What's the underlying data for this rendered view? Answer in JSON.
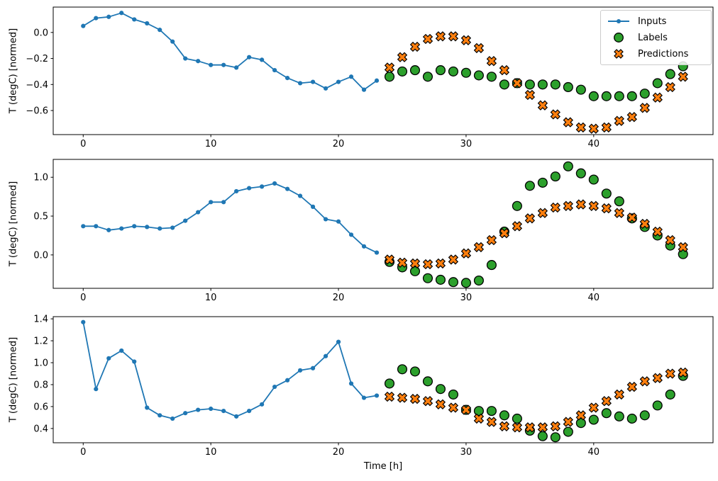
{
  "figure": {
    "background": "#ffffff",
    "colors": {
      "inputs": "#1f77b4",
      "labels": "#2ca02c",
      "predictions": "#ff7f0e",
      "marker_edge": "#000000"
    }
  },
  "legend": {
    "position": "upper right",
    "entries": [
      {
        "label": "Inputs",
        "marker": "line-dot",
        "color": "#1f77b4"
      },
      {
        "label": "Labels",
        "marker": "circle",
        "color": "#2ca02c"
      },
      {
        "label": "Predictions",
        "marker": "x",
        "color": "#ff7f0e"
      }
    ]
  },
  "chart_data": [
    {
      "type": "line",
      "title": "",
      "xlabel": "",
      "ylabel": "T (degC) [normed]",
      "xlim": [
        -2.35,
        49.35
      ],
      "ylim": [
        -0.785,
        0.195
      ],
      "xticks": [
        0,
        10,
        20,
        30,
        40
      ],
      "xtick_labels": [
        "0",
        "10",
        "20",
        "30",
        "40"
      ],
      "yticks": [
        0.0,
        -0.2,
        -0.4,
        -0.6
      ],
      "ytick_labels": [
        "0.0",
        "−0.2",
        "−0.4",
        "−0.6"
      ],
      "grid": false,
      "legend_visible": true,
      "series": [
        {
          "name": "Inputs",
          "type": "line",
          "marker": "dot",
          "color": "#1f77b4",
          "x": [
            0,
            1,
            2,
            3,
            4,
            5,
            6,
            7,
            8,
            9,
            10,
            11,
            12,
            13,
            14,
            15,
            16,
            17,
            18,
            19,
            20,
            21,
            22,
            23
          ],
          "values": [
            0.05,
            0.11,
            0.12,
            0.15,
            0.1,
            0.07,
            0.02,
            -0.07,
            -0.2,
            -0.22,
            -0.25,
            -0.25,
            -0.27,
            -0.19,
            -0.21,
            -0.29,
            -0.35,
            -0.39,
            -0.38,
            -0.43,
            -0.38,
            -0.34,
            -0.44,
            -0.37
          ]
        },
        {
          "name": "Labels",
          "type": "scatter",
          "marker": "circle",
          "color": "#2ca02c",
          "x": [
            24,
            25,
            26,
            27,
            28,
            29,
            30,
            31,
            32,
            33,
            34,
            35,
            36,
            37,
            38,
            39,
            40,
            41,
            42,
            43,
            44,
            45,
            46,
            47
          ],
          "values": [
            -0.34,
            -0.3,
            -0.29,
            -0.34,
            -0.29,
            -0.3,
            -0.31,
            -0.33,
            -0.34,
            -0.4,
            -0.39,
            -0.4,
            -0.4,
            -0.4,
            -0.42,
            -0.44,
            -0.49,
            -0.49,
            -0.49,
            -0.49,
            -0.47,
            -0.39,
            -0.32,
            -0.26
          ]
        },
        {
          "name": "Predictions",
          "type": "scatter",
          "marker": "x",
          "color": "#ff7f0e",
          "x": [
            24,
            25,
            26,
            27,
            28,
            29,
            30,
            31,
            32,
            33,
            34,
            35,
            36,
            37,
            38,
            39,
            40,
            41,
            42,
            43,
            44,
            45,
            46,
            47
          ],
          "values": [
            -0.27,
            -0.19,
            -0.11,
            -0.05,
            -0.03,
            -0.03,
            -0.06,
            -0.12,
            -0.22,
            -0.29,
            -0.39,
            -0.48,
            -0.56,
            -0.63,
            -0.69,
            -0.73,
            -0.74,
            -0.73,
            -0.68,
            -0.65,
            -0.58,
            -0.5,
            -0.42,
            -0.34
          ]
        }
      ]
    },
    {
      "type": "line",
      "title": "",
      "xlabel": "",
      "ylabel": "T (degC) [normed]",
      "xlim": [
        -2.35,
        49.35
      ],
      "ylim": [
        -0.43,
        1.23
      ],
      "xticks": [
        0,
        10,
        20,
        30,
        40
      ],
      "xtick_labels": [
        "0",
        "10",
        "20",
        "30",
        "40"
      ],
      "yticks": [
        1.0,
        0.5,
        0.0
      ],
      "ytick_labels": [
        "1.0",
        "0.5",
        "0.0"
      ],
      "grid": false,
      "legend_visible": false,
      "series": [
        {
          "name": "Inputs",
          "type": "line",
          "marker": "dot",
          "color": "#1f77b4",
          "x": [
            0,
            1,
            2,
            3,
            4,
            5,
            6,
            7,
            8,
            9,
            10,
            11,
            12,
            13,
            14,
            15,
            16,
            17,
            18,
            19,
            20,
            21,
            22,
            23
          ],
          "values": [
            0.37,
            0.37,
            0.32,
            0.34,
            0.37,
            0.36,
            0.34,
            0.35,
            0.44,
            0.55,
            0.68,
            0.68,
            0.82,
            0.86,
            0.88,
            0.92,
            0.85,
            0.76,
            0.62,
            0.46,
            0.43,
            0.26,
            0.11,
            0.03
          ]
        },
        {
          "name": "Labels",
          "type": "scatter",
          "marker": "circle",
          "color": "#2ca02c",
          "x": [
            24,
            25,
            26,
            27,
            28,
            29,
            30,
            31,
            32,
            33,
            34,
            35,
            36,
            37,
            38,
            39,
            40,
            41,
            42,
            43,
            44,
            45,
            46,
            47
          ],
          "values": [
            -0.09,
            -0.16,
            -0.21,
            -0.3,
            -0.32,
            -0.35,
            -0.36,
            -0.33,
            -0.13,
            0.3,
            0.63,
            0.89,
            0.93,
            1.01,
            1.14,
            1.05,
            0.97,
            0.79,
            0.69,
            0.47,
            0.36,
            0.25,
            0.12,
            0.01
          ]
        },
        {
          "name": "Predictions",
          "type": "scatter",
          "marker": "x",
          "color": "#ff7f0e",
          "x": [
            24,
            25,
            26,
            27,
            28,
            29,
            30,
            31,
            32,
            33,
            34,
            35,
            36,
            37,
            38,
            39,
            40,
            41,
            42,
            43,
            44,
            45,
            46,
            47
          ],
          "values": [
            -0.06,
            -0.1,
            -0.11,
            -0.12,
            -0.11,
            -0.06,
            0.02,
            0.1,
            0.19,
            0.28,
            0.37,
            0.47,
            0.54,
            0.61,
            0.63,
            0.65,
            0.63,
            0.6,
            0.54,
            0.48,
            0.4,
            0.3,
            0.19,
            0.1
          ]
        }
      ]
    },
    {
      "type": "line",
      "title": "",
      "xlabel": "Time [h]",
      "ylabel": "T (degC) [normed]",
      "xlim": [
        -2.35,
        49.35
      ],
      "ylim": [
        0.27,
        1.42
      ],
      "xticks": [
        0,
        10,
        20,
        30,
        40
      ],
      "xtick_labels": [
        "0",
        "10",
        "20",
        "30",
        "40"
      ],
      "yticks": [
        1.4,
        1.2,
        1.0,
        0.8,
        0.6,
        0.4
      ],
      "ytick_labels": [
        "1.4",
        "1.2",
        "1.0",
        "0.8",
        "0.6",
        "0.4"
      ],
      "grid": false,
      "legend_visible": false,
      "series": [
        {
          "name": "Inputs",
          "type": "line",
          "marker": "dot",
          "color": "#1f77b4",
          "x": [
            0,
            1,
            2,
            3,
            4,
            5,
            6,
            7,
            8,
            9,
            10,
            11,
            12,
            13,
            14,
            15,
            16,
            17,
            18,
            19,
            20,
            21,
            22,
            23
          ],
          "values": [
            1.37,
            0.76,
            1.04,
            1.11,
            1.01,
            0.59,
            0.52,
            0.49,
            0.54,
            0.57,
            0.58,
            0.56,
            0.51,
            0.56,
            0.62,
            0.78,
            0.84,
            0.93,
            0.95,
            1.06,
            1.19,
            0.81,
            0.68,
            0.7
          ]
        },
        {
          "name": "Labels",
          "type": "scatter",
          "marker": "circle",
          "color": "#2ca02c",
          "x": [
            24,
            25,
            26,
            27,
            28,
            29,
            30,
            31,
            32,
            33,
            34,
            35,
            36,
            37,
            38,
            39,
            40,
            41,
            42,
            43,
            44,
            45,
            46,
            47
          ],
          "values": [
            0.81,
            0.94,
            0.92,
            0.83,
            0.76,
            0.71,
            0.57,
            0.56,
            0.56,
            0.52,
            0.49,
            0.38,
            0.33,
            0.32,
            0.37,
            0.45,
            0.48,
            0.54,
            0.51,
            0.49,
            0.52,
            0.61,
            0.71,
            0.88
          ]
        },
        {
          "name": "Predictions",
          "type": "scatter",
          "marker": "x",
          "color": "#ff7f0e",
          "x": [
            24,
            25,
            26,
            27,
            28,
            29,
            30,
            31,
            32,
            33,
            34,
            35,
            36,
            37,
            38,
            39,
            40,
            41,
            42,
            43,
            44,
            45,
            46,
            47
          ],
          "values": [
            0.69,
            0.68,
            0.67,
            0.65,
            0.62,
            0.59,
            0.57,
            0.49,
            0.46,
            0.42,
            0.41,
            0.41,
            0.41,
            0.42,
            0.46,
            0.52,
            0.59,
            0.65,
            0.71,
            0.78,
            0.83,
            0.86,
            0.9,
            0.91
          ]
        }
      ]
    }
  ]
}
